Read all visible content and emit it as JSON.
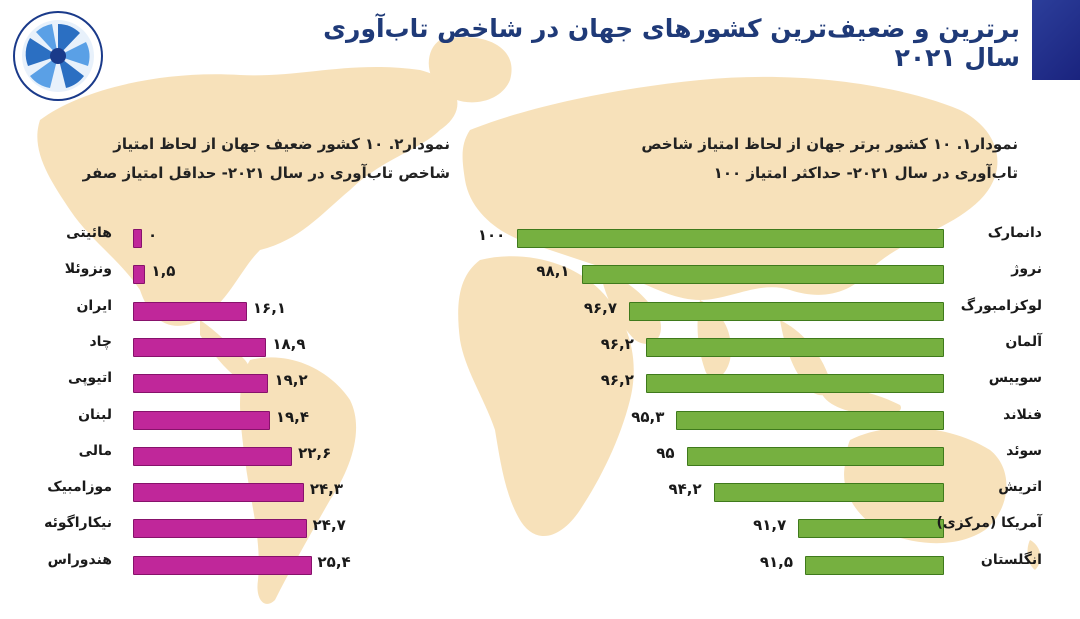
{
  "page": {
    "title": "برترین و ضعیف‌ترین کشورهای جهان در شاخص تاب‌آوری سال ۲۰۲۱"
  },
  "colors": {
    "top_bar": "#76b040",
    "bottom_bar": "#c0279a",
    "map": "#f5d9a8",
    "title": "#1f3a78"
  },
  "chart_data": [
    {
      "type": "bar",
      "orientation": "horizontal",
      "title": "نمودار۱. ۱۰ کشور برتر جهان از لحاظ امتیاز شاخص تاب‌آوری در سال ۲۰۲۱- حداکثر امتیاز ۱۰۰",
      "categories": [
        "دانمارک",
        "نروژ",
        "لوکزامبورگ",
        "آلمان",
        "سوییس",
        "فنلاند",
        "سوئد",
        "اتریش",
        "آمریکا (مرکزی)",
        "انگلستان"
      ],
      "values": [
        100,
        98.1,
        96.7,
        96.2,
        96.2,
        95.3,
        95,
        94.2,
        91.7,
        91.5
      ],
      "value_labels": [
        "۱۰۰",
        "۹۸,۱",
        "۹۶,۷",
        "۹۶,۲",
        "۹۶,۲",
        "۹۵,۳",
        "۹۵",
        "۹۴,۲",
        "۹۱,۷",
        "۹۱,۵"
      ],
      "color": "#76b040"
    },
    {
      "type": "bar",
      "orientation": "horizontal",
      "title": "نمودار۲. ۱۰ کشور ضعیف جهان از لحاظ امتیاز شاخص تاب‌آوری در سال ۲۰۲۱- حداقل امتیاز صفر",
      "categories": [
        "هائیتی",
        "ونزوئلا",
        "ایران",
        "چاد",
        "اتیوپی",
        "لبنان",
        "مالی",
        "موزامبیک",
        "نیکاراگوئه",
        "هندوراس"
      ],
      "values": [
        0,
        1.5,
        16.1,
        18.9,
        19.2,
        19.4,
        22.6,
        24.3,
        24.7,
        25.4
      ],
      "value_labels": [
        "۰",
        "۱,۵",
        "۱۶,۱",
        "۱۸,۹",
        "۱۹,۲",
        "۱۹,۴",
        "۲۲,۶",
        "۲۴,۳",
        "۲۴,۷",
        "۲۵,۴"
      ],
      "color": "#c0279a"
    }
  ]
}
